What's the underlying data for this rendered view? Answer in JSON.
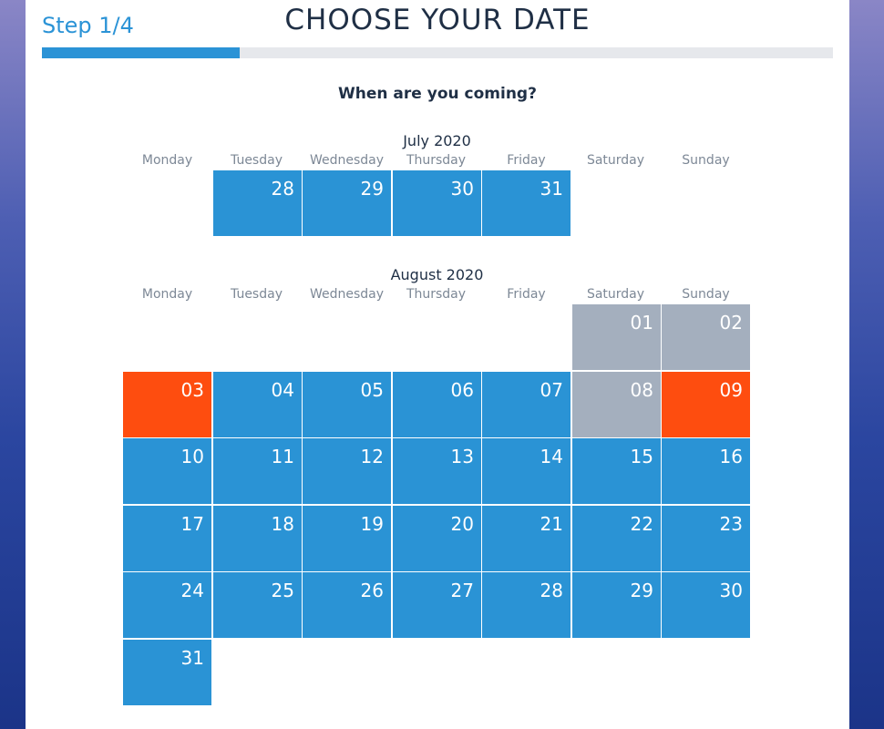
{
  "header": {
    "step": "Step 1/4",
    "title": "CHOOSE YOUR DATE",
    "progress": 0.25
  },
  "question": "When are you coming?",
  "weekdays": [
    "Monday",
    "Tuesday",
    "Wednesday",
    "Thursday",
    "Friday",
    "Saturday",
    "Sunday"
  ],
  "months": [
    {
      "title": "July 2020",
      "days": [
        {
          "label": "28",
          "col": 1,
          "row": 0,
          "state": "available"
        },
        {
          "label": "29",
          "col": 2,
          "row": 0,
          "state": "available"
        },
        {
          "label": "30",
          "col": 3,
          "row": 0,
          "state": "available"
        },
        {
          "label": "31",
          "col": 4,
          "row": 0,
          "state": "available"
        }
      ]
    },
    {
      "title": "August 2020",
      "days": [
        {
          "label": "01",
          "col": 5,
          "row": 0,
          "state": "unavailable"
        },
        {
          "label": "02",
          "col": 6,
          "row": 0,
          "state": "unavailable"
        },
        {
          "label": "03",
          "col": 0,
          "row": 1,
          "state": "special"
        },
        {
          "label": "04",
          "col": 1,
          "row": 1,
          "state": "available"
        },
        {
          "label": "05",
          "col": 2,
          "row": 1,
          "state": "available"
        },
        {
          "label": "06",
          "col": 3,
          "row": 1,
          "state": "available"
        },
        {
          "label": "07",
          "col": 4,
          "row": 1,
          "state": "available"
        },
        {
          "label": "08",
          "col": 5,
          "row": 1,
          "state": "unavailable"
        },
        {
          "label": "09",
          "col": 6,
          "row": 1,
          "state": "special"
        },
        {
          "label": "10",
          "col": 0,
          "row": 2,
          "state": "available"
        },
        {
          "label": "11",
          "col": 1,
          "row": 2,
          "state": "available"
        },
        {
          "label": "12",
          "col": 2,
          "row": 2,
          "state": "available"
        },
        {
          "label": "13",
          "col": 3,
          "row": 2,
          "state": "available"
        },
        {
          "label": "14",
          "col": 4,
          "row": 2,
          "state": "available"
        },
        {
          "label": "15",
          "col": 5,
          "row": 2,
          "state": "available"
        },
        {
          "label": "16",
          "col": 6,
          "row": 2,
          "state": "available"
        },
        {
          "label": "17",
          "col": 0,
          "row": 3,
          "state": "available"
        },
        {
          "label": "18",
          "col": 1,
          "row": 3,
          "state": "available"
        },
        {
          "label": "19",
          "col": 2,
          "row": 3,
          "state": "available"
        },
        {
          "label": "20",
          "col": 3,
          "row": 3,
          "state": "available"
        },
        {
          "label": "21",
          "col": 4,
          "row": 3,
          "state": "available"
        },
        {
          "label": "22",
          "col": 5,
          "row": 3,
          "state": "available"
        },
        {
          "label": "23",
          "col": 6,
          "row": 3,
          "state": "available"
        },
        {
          "label": "24",
          "col": 0,
          "row": 4,
          "state": "available"
        },
        {
          "label": "25",
          "col": 1,
          "row": 4,
          "state": "available"
        },
        {
          "label": "26",
          "col": 2,
          "row": 4,
          "state": "available"
        },
        {
          "label": "27",
          "col": 3,
          "row": 4,
          "state": "available"
        },
        {
          "label": "28",
          "col": 4,
          "row": 4,
          "state": "available"
        },
        {
          "label": "29",
          "col": 5,
          "row": 4,
          "state": "available"
        },
        {
          "label": "30",
          "col": 6,
          "row": 4,
          "state": "available"
        },
        {
          "label": "31",
          "col": 0,
          "row": 5,
          "state": "available"
        }
      ]
    }
  ]
}
